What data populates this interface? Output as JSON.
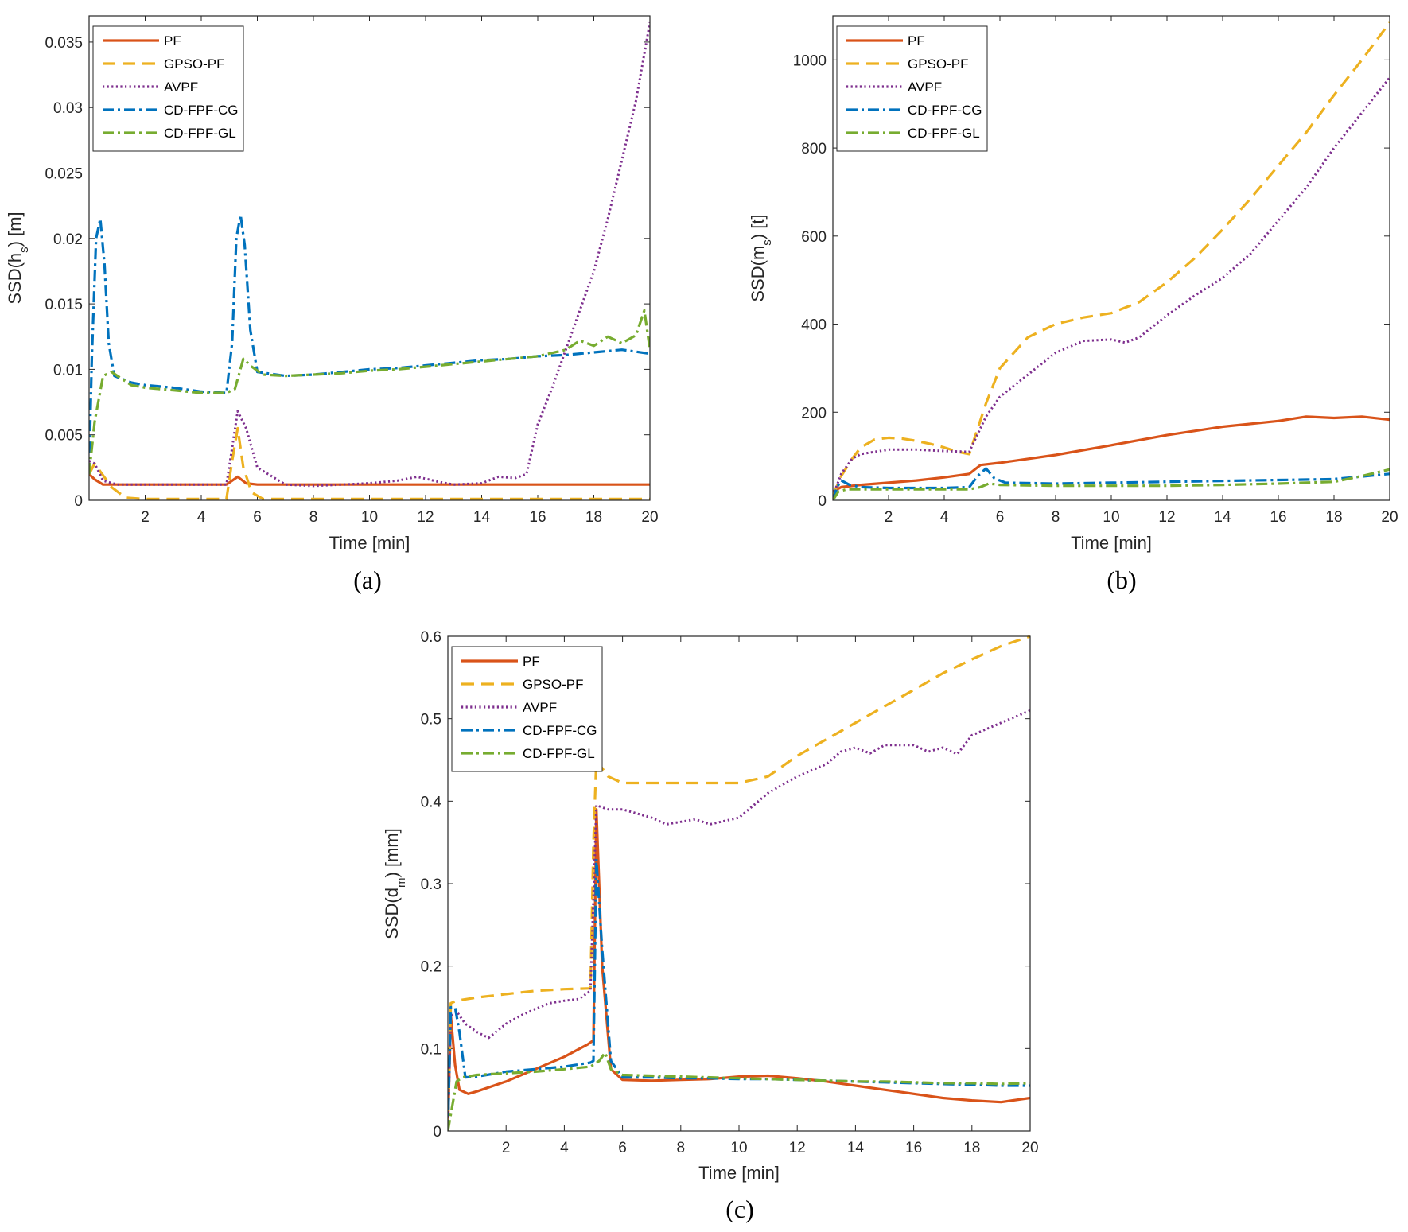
{
  "styles": {
    "colors": {
      "PF": "#d95319",
      "GPSO-PF": "#edb120",
      "AVPF": "#7e2f8e",
      "CD-FPF-CG": "#0072bd",
      "CD-FPF-GL": "#77ac30"
    },
    "dash": {
      "PF": "solid",
      "GPSO-PF": "dashed",
      "AVPF": "dotted",
      "CD-FPF-CG": "dash-dot",
      "CD-FPF-GL": "dash-dot"
    },
    "legend_order": [
      "PF",
      "GPSO-PF",
      "AVPF",
      "CD-FPF-CG",
      "CD-FPF-GL"
    ]
  },
  "chart_data": [
    {
      "id": "a",
      "type": "line",
      "panel_label": "(a)",
      "xlabel": "Time [min]",
      "ylabel": "SSD(h_s) [m]",
      "xlim": [
        0,
        20
      ],
      "ylim": [
        0,
        0.037
      ],
      "xticks": [
        2,
        4,
        6,
        8,
        10,
        12,
        14,
        16,
        18,
        20
      ],
      "yticks": [
        "0",
        "0.005",
        "0.01",
        "0.015",
        "0.02",
        "0.025",
        "0.03",
        "0.035"
      ],
      "legend_position": "top-left",
      "series": [
        {
          "name": "PF",
          "x": [
            0,
            0.2,
            0.5,
            1,
            2,
            3,
            4,
            4.9,
            5.1,
            5.3,
            5.6,
            6,
            8,
            10,
            12,
            14,
            16,
            18,
            20
          ],
          "y": [
            0.002,
            0.0016,
            0.0012,
            0.0012,
            0.0012,
            0.0012,
            0.0012,
            0.0012,
            0.0015,
            0.0018,
            0.0013,
            0.0012,
            0.0012,
            0.0012,
            0.0012,
            0.0012,
            0.0012,
            0.0012,
            0.0012
          ]
        },
        {
          "name": "GPSO-PF",
          "x": [
            0,
            0.2,
            0.4,
            0.8,
            1.3,
            2,
            4,
            4.9,
            5.1,
            5.3,
            5.5,
            5.8,
            6.2,
            8,
            10,
            12,
            14,
            16,
            18,
            20
          ],
          "y": [
            0.002,
            0.0028,
            0.0022,
            0.001,
            0.0002,
            0.0001,
            0.0001,
            0.0001,
            0.003,
            0.0055,
            0.0025,
            0.0006,
            0.0001,
            0.0001,
            0.0001,
            0.0001,
            0.0001,
            0.0001,
            0.0001,
            0.0001
          ]
        },
        {
          "name": "AVPF",
          "x": [
            0,
            0.2,
            0.5,
            1,
            2,
            3,
            4,
            4.9,
            5.1,
            5.3,
            5.6,
            6,
            7,
            8,
            9,
            10,
            11,
            11.7,
            12.5,
            13,
            14,
            14.6,
            15.2,
            15.6,
            16,
            16.5,
            17,
            17.5,
            18,
            18.5,
            19,
            19.5,
            20
          ],
          "y": [
            0.003,
            0.0028,
            0.0015,
            0.0012,
            0.0012,
            0.0012,
            0.0012,
            0.0012,
            0.004,
            0.0068,
            0.0055,
            0.0025,
            0.0012,
            0.0011,
            0.0012,
            0.0013,
            0.0015,
            0.0018,
            0.0014,
            0.0012,
            0.0013,
            0.0018,
            0.0017,
            0.002,
            0.0058,
            0.0085,
            0.0115,
            0.0145,
            0.0175,
            0.0215,
            0.026,
            0.0305,
            0.0365
          ]
        },
        {
          "name": "CD-FPF-CG",
          "x": [
            0,
            0.1,
            0.25,
            0.4,
            0.55,
            0.7,
            0.9,
            1.5,
            2,
            3,
            4,
            4.9,
            5.1,
            5.25,
            5.4,
            5.55,
            5.75,
            6,
            7,
            8,
            9,
            10,
            11,
            12,
            13,
            14,
            15,
            16,
            17,
            18,
            19,
            20
          ],
          "y": [
            0.002,
            0.011,
            0.02,
            0.0215,
            0.018,
            0.012,
            0.0095,
            0.009,
            0.0088,
            0.0086,
            0.0083,
            0.0082,
            0.012,
            0.02,
            0.0218,
            0.0195,
            0.013,
            0.0098,
            0.0095,
            0.0096,
            0.0098,
            0.01,
            0.0101,
            0.0103,
            0.0105,
            0.0107,
            0.0108,
            0.011,
            0.0111,
            0.0113,
            0.0115,
            0.0112
          ]
        },
        {
          "name": "CD-FPF-GL",
          "x": [
            0,
            0.2,
            0.5,
            0.8,
            1.5,
            2,
            3,
            4,
            4.9,
            5.2,
            5.5,
            5.8,
            6.2,
            7,
            8,
            9,
            10,
            11,
            12,
            13,
            14,
            15,
            16,
            17,
            17.5,
            18,
            18.5,
            19,
            19.5,
            19.8,
            20
          ],
          "y": [
            0.002,
            0.006,
            0.0095,
            0.0098,
            0.0088,
            0.0086,
            0.0084,
            0.0082,
            0.0082,
            0.0085,
            0.0108,
            0.0102,
            0.0096,
            0.0095,
            0.0096,
            0.0097,
            0.0099,
            0.01,
            0.0102,
            0.0104,
            0.0106,
            0.0108,
            0.011,
            0.0115,
            0.0122,
            0.0118,
            0.0125,
            0.012,
            0.0126,
            0.0145,
            0.0115
          ]
        }
      ]
    },
    {
      "id": "b",
      "type": "line",
      "panel_label": "(b)",
      "xlabel": "Time [min]",
      "ylabel": "SSD(m_s) [t]",
      "xlim": [
        0,
        20
      ],
      "ylim": [
        0,
        1100
      ],
      "xticks": [
        2,
        4,
        6,
        8,
        10,
        12,
        14,
        16,
        18,
        20
      ],
      "yticks": [
        "0",
        "200",
        "400",
        "600",
        "800",
        "1000"
      ],
      "legend_position": "top-left",
      "series": [
        {
          "name": "PF",
          "x": [
            0,
            0.3,
            1,
            2,
            3,
            4,
            4.9,
            5.3,
            6,
            8,
            10,
            12,
            14,
            16,
            17,
            18,
            19,
            20
          ],
          "y": [
            20,
            30,
            35,
            40,
            45,
            52,
            60,
            80,
            85,
            103,
            125,
            148,
            167,
            180,
            190,
            187,
            190,
            183
          ]
        },
        {
          "name": "GPSO-PF",
          "x": [
            0,
            0.3,
            0.7,
            1,
            1.5,
            2,
            2.5,
            3,
            3.5,
            4,
            4.5,
            4.9,
            5.5,
            6,
            7,
            8,
            9,
            10,
            11,
            12,
            13,
            14,
            15,
            16,
            17,
            18,
            19,
            20
          ],
          "y": [
            10,
            55,
            95,
            120,
            138,
            142,
            140,
            135,
            128,
            120,
            110,
            105,
            220,
            300,
            370,
            400,
            415,
            425,
            450,
            495,
            550,
            615,
            685,
            760,
            835,
            920,
            1000,
            1085
          ]
        },
        {
          "name": "AVPF",
          "x": [
            0,
            0.3,
            0.7,
            1,
            1.5,
            2,
            3,
            4,
            4.9,
            5.5,
            6,
            7,
            8,
            9,
            10,
            10.5,
            11,
            12,
            13,
            14,
            15,
            16,
            17,
            18,
            19,
            20
          ],
          "y": [
            10,
            60,
            95,
            105,
            110,
            115,
            115,
            112,
            110,
            190,
            235,
            285,
            335,
            362,
            365,
            358,
            370,
            420,
            465,
            505,
            560,
            635,
            710,
            800,
            880,
            960
          ]
        },
        {
          "name": "CD-FPF-CG",
          "x": [
            0,
            0.15,
            0.3,
            0.6,
            1,
            2,
            3,
            4,
            4.9,
            5.2,
            5.5,
            5.8,
            6.2,
            8,
            10,
            12,
            14,
            16,
            18,
            20
          ],
          "y": [
            0,
            30,
            45,
            35,
            30,
            28,
            28,
            28,
            30,
            55,
            72,
            50,
            40,
            38,
            40,
            42,
            44,
            46,
            48,
            60
          ]
        },
        {
          "name": "CD-FPF-GL",
          "x": [
            0,
            0.2,
            0.5,
            1,
            2,
            3,
            4,
            4.9,
            5.3,
            5.6,
            6,
            8,
            10,
            12,
            14,
            16,
            18,
            19,
            20
          ],
          "y": [
            0,
            20,
            25,
            25,
            25,
            25,
            25,
            25,
            30,
            38,
            35,
            33,
            33,
            33,
            35,
            38,
            42,
            55,
            70
          ]
        }
      ]
    },
    {
      "id": "c",
      "type": "line",
      "panel_label": "(c)",
      "xlabel": "Time [min]",
      "ylabel": "SSD(d_m) [mm]",
      "xlim": [
        0,
        20
      ],
      "ylim": [
        0,
        0.6
      ],
      "xticks": [
        2,
        4,
        6,
        8,
        10,
        12,
        14,
        16,
        18,
        20
      ],
      "yticks": [
        "0",
        "0.1",
        "0.2",
        "0.3",
        "0.4",
        "0.5",
        "0.6"
      ],
      "legend_position": "top-left",
      "series": [
        {
          "name": "PF",
          "x": [
            0,
            0.1,
            0.25,
            0.4,
            0.7,
            1,
            2,
            3,
            4,
            4.8,
            5.0,
            5.1,
            5.3,
            5.6,
            6,
            7,
            8,
            9,
            10,
            11,
            12,
            13,
            14,
            15,
            16,
            17,
            18,
            19,
            20
          ],
          "y": [
            0,
            0.14,
            0.08,
            0.05,
            0.045,
            0.048,
            0.06,
            0.075,
            0.09,
            0.105,
            0.11,
            0.39,
            0.2,
            0.075,
            0.062,
            0.061,
            0.062,
            0.063,
            0.066,
            0.067,
            0.064,
            0.06,
            0.055,
            0.05,
            0.045,
            0.04,
            0.037,
            0.035,
            0.04
          ]
        },
        {
          "name": "GPSO-PF",
          "x": [
            0,
            0.1,
            0.3,
            1,
            2,
            3,
            4,
            4.9,
            5.0,
            5.1,
            5.5,
            6,
            7,
            8,
            9,
            10,
            11,
            12,
            13,
            14,
            15,
            16,
            17,
            18,
            19,
            20
          ],
          "y": [
            0,
            0.155,
            0.158,
            0.162,
            0.166,
            0.17,
            0.172,
            0.173,
            0.35,
            0.45,
            0.43,
            0.422,
            0.422,
            0.422,
            0.422,
            0.422,
            0.43,
            0.455,
            0.475,
            0.495,
            0.515,
            0.535,
            0.555,
            0.572,
            0.588,
            0.6
          ]
        },
        {
          "name": "AVPF",
          "x": [
            0,
            0.1,
            0.3,
            0.6,
            1,
            1.4,
            2,
            2.5,
            3,
            3.5,
            4,
            4.5,
            4.9,
            5.1,
            5.5,
            6,
            7,
            7.5,
            8,
            8.5,
            9,
            10,
            11,
            12,
            13,
            13.5,
            14,
            14.5,
            15,
            16,
            16.5,
            17,
            17.5,
            18,
            19,
            20
          ],
          "y": [
            0,
            0.14,
            0.145,
            0.13,
            0.12,
            0.113,
            0.13,
            0.14,
            0.148,
            0.155,
            0.158,
            0.16,
            0.17,
            0.395,
            0.39,
            0.39,
            0.38,
            0.372,
            0.375,
            0.378,
            0.372,
            0.38,
            0.41,
            0.43,
            0.445,
            0.46,
            0.465,
            0.458,
            0.468,
            0.468,
            0.46,
            0.465,
            0.457,
            0.48,
            0.495,
            0.51
          ]
        },
        {
          "name": "CD-FPF-CG",
          "x": [
            0,
            0.1,
            0.25,
            0.4,
            0.6,
            1,
            2,
            3,
            4,
            4.9,
            5.0,
            5.1,
            5.3,
            5.6,
            6,
            7,
            8,
            9,
            10,
            11,
            12,
            13,
            14,
            15,
            16,
            17,
            18,
            19,
            20
          ],
          "y": [
            0,
            0.15,
            0.15,
            0.12,
            0.065,
            0.066,
            0.072,
            0.075,
            0.078,
            0.083,
            0.085,
            0.33,
            0.22,
            0.085,
            0.065,
            0.065,
            0.064,
            0.064,
            0.063,
            0.063,
            0.062,
            0.061,
            0.06,
            0.059,
            0.058,
            0.057,
            0.056,
            0.055,
            0.055
          ]
        },
        {
          "name": "CD-FPF-GL",
          "x": [
            0,
            0.15,
            0.3,
            0.5,
            1,
            2,
            3,
            4,
            4.9,
            5.2,
            5.4,
            5.6,
            6,
            7,
            8,
            9,
            10,
            11,
            12,
            13,
            14,
            15,
            16,
            17,
            18,
            19,
            20
          ],
          "y": [
            0,
            0.03,
            0.06,
            0.065,
            0.068,
            0.07,
            0.072,
            0.075,
            0.078,
            0.085,
            0.095,
            0.075,
            0.068,
            0.067,
            0.066,
            0.065,
            0.064,
            0.063,
            0.062,
            0.061,
            0.06,
            0.06,
            0.059,
            0.058,
            0.058,
            0.057,
            0.058
          ]
        }
      ]
    }
  ]
}
